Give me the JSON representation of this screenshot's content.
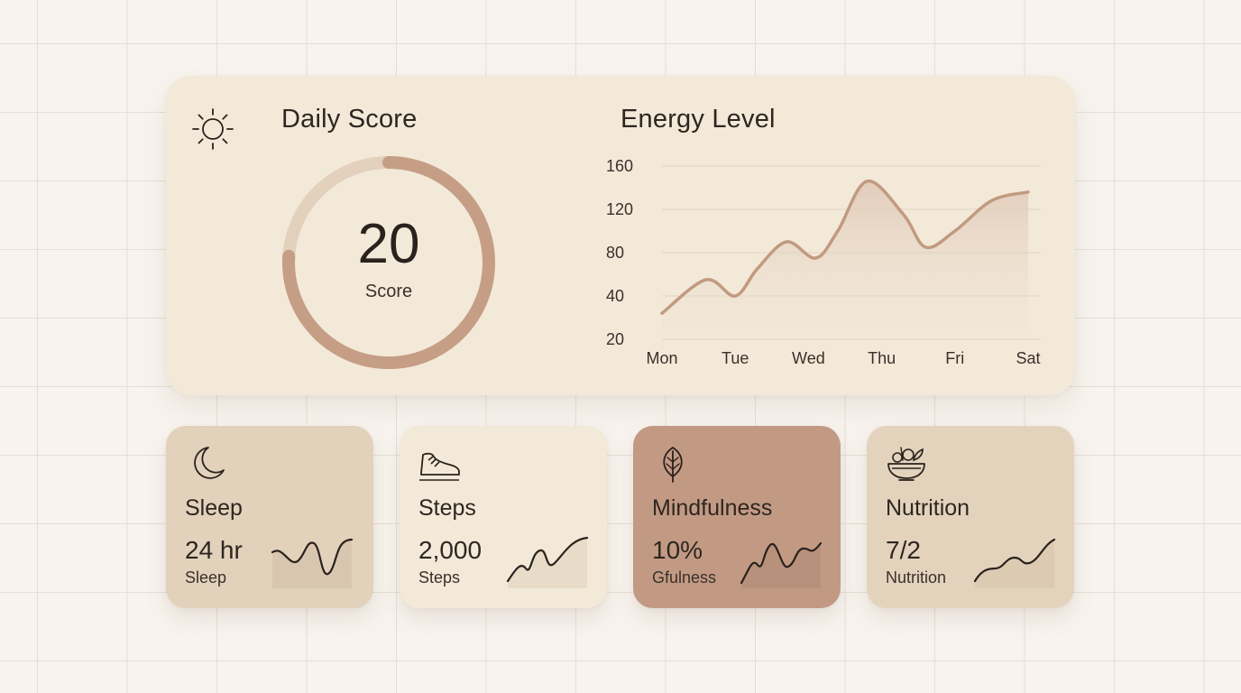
{
  "colors": {
    "background": "#f8f3ee",
    "card": "#f3e9d9",
    "ring_track": "#e3d1bd",
    "ring_progress": "#c59e85",
    "line": "#c29a80",
    "dark_line": "#2a221c"
  },
  "daily_score": {
    "icon": "sun-icon",
    "title": "Daily Score",
    "value": "20",
    "label": "Score",
    "progress": 0.76
  },
  "energy": {
    "title": "Energy Level"
  },
  "chart_data": {
    "type": "area",
    "title": "Energy Level",
    "categories": [
      "Mon",
      "Tue",
      "Wed",
      "Thu",
      "Fri",
      "Sat"
    ],
    "x": [
      0,
      0.6,
      1,
      1.3,
      1.7,
      2.1,
      2.4,
      2.8,
      3.3,
      3.6,
      4,
      4.5,
      5
    ],
    "y": [
      32,
      55,
      40,
      65,
      90,
      75,
      100,
      146,
      115,
      85,
      100,
      128,
      136
    ],
    "yticks": [
      20,
      40,
      80,
      120,
      160
    ],
    "ylim": [
      20,
      160
    ],
    "grid": true
  },
  "tiles": [
    {
      "icon": "moon-icon",
      "title": "Sleep",
      "value": "24 hr",
      "sub": "Sleep",
      "bg": "#e2d1bb"
    },
    {
      "icon": "shoe-icon",
      "title": "Steps",
      "value": "2,000",
      "sub": "Steps",
      "bg": "#f3e9d9"
    },
    {
      "icon": "leaf-icon",
      "title": "Mindfulness",
      "value": "10%",
      "sub": "Gfulness",
      "bg": "#c29a84"
    },
    {
      "icon": "bowl-icon",
      "title": "Nutrition",
      "value": "7/2",
      "sub": "Nutrition",
      "bg": "#e3d3bd"
    }
  ]
}
